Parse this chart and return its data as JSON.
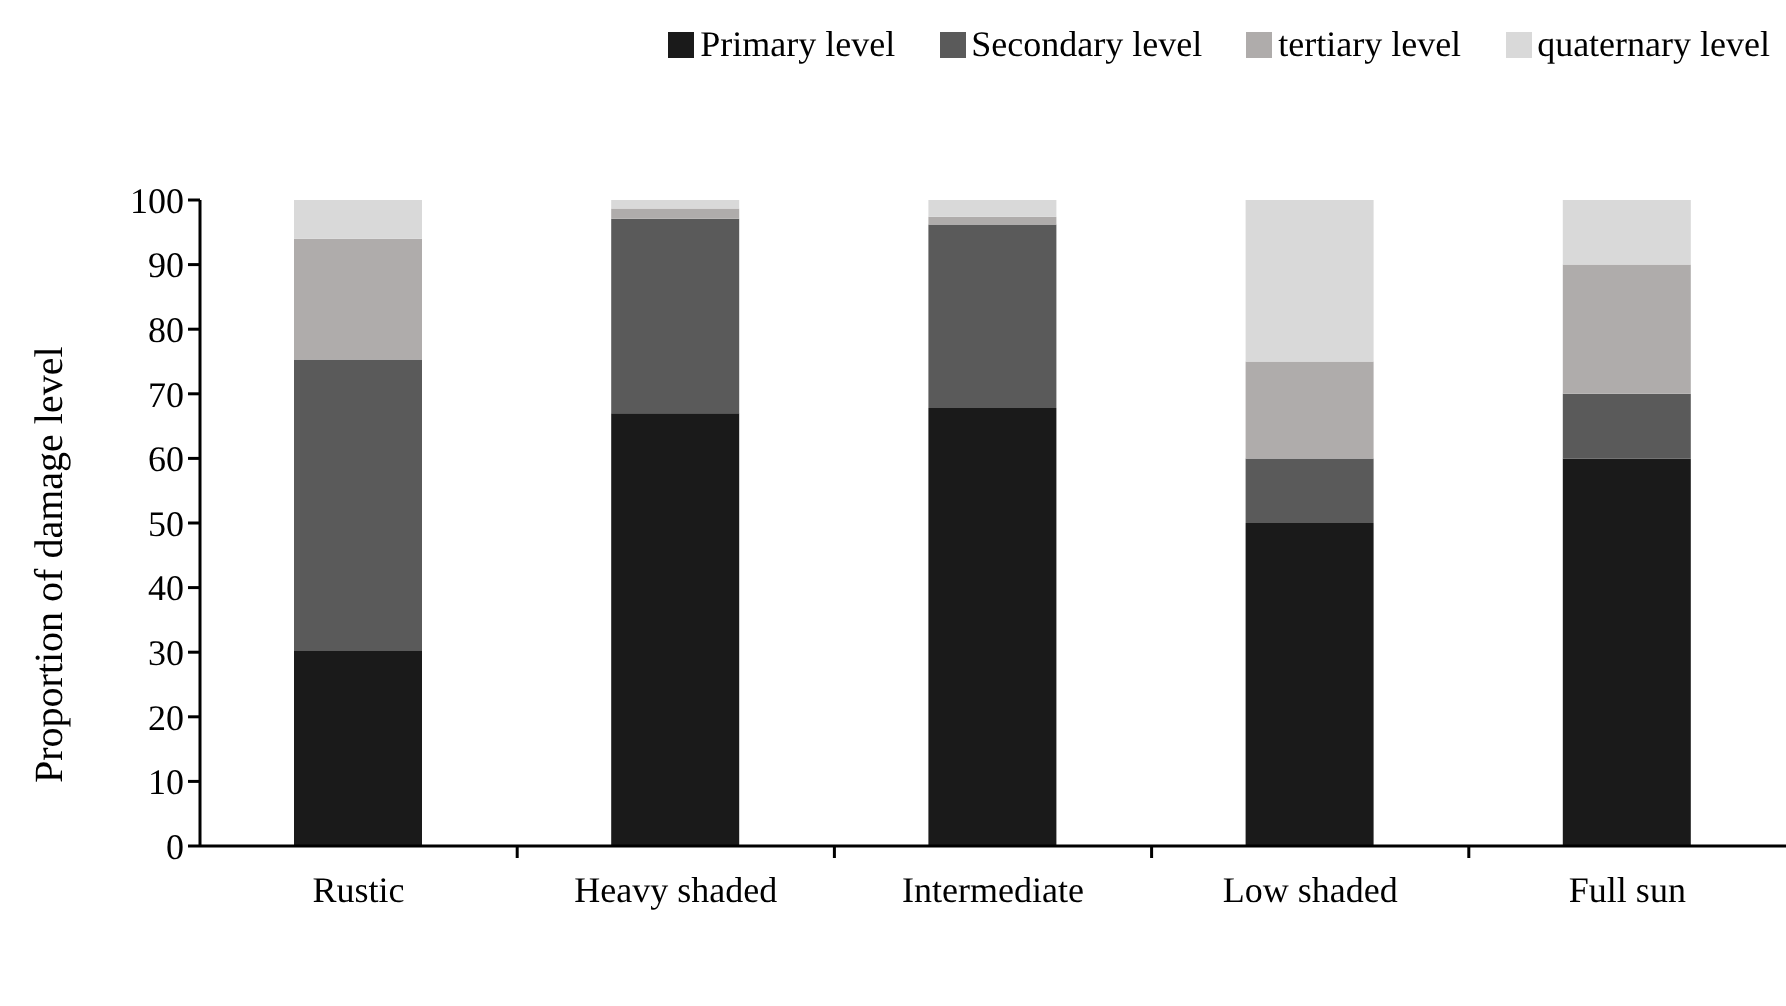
{
  "chart_data": {
    "type": "bar",
    "stacked": true,
    "ylabel": "Proportion of damage level",
    "categories": [
      "Rustic",
      "Heavy shaded",
      "Intermediate",
      "Low shaded",
      "Full sun"
    ],
    "series": [
      {
        "name": "Primary level",
        "color": "#1a1a1a",
        "values": [
          30.2,
          67.0,
          67.8,
          50,
          60
        ]
      },
      {
        "name": "Secondary level",
        "color": "#5a5a5a",
        "values": [
          45.1,
          30.1,
          28.4,
          10,
          10
        ]
      },
      {
        "name": "tertiary level",
        "color": "#afacab",
        "values": [
          18.7,
          1.6,
          1.2,
          15,
          20
        ]
      },
      {
        "name": "quaternary level",
        "color": "#d9d9d9",
        "values": [
          6.0,
          1.3,
          2.6,
          25,
          10
        ]
      }
    ],
    "ylim": [
      0,
      100
    ],
    "yticks": [
      0,
      10,
      20,
      30,
      40,
      50,
      60,
      70,
      80,
      90,
      100
    ],
    "grid": false,
    "legend": "top right"
  }
}
